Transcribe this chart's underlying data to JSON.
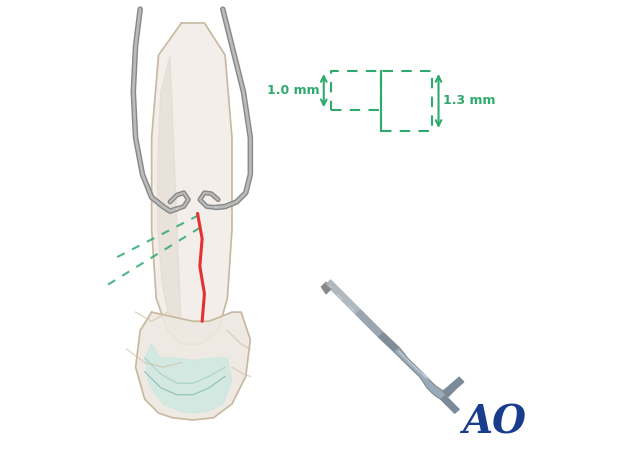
{
  "bg_color": "#ffffff",
  "green_color": "#2eaa6e",
  "red_color": "#e63030",
  "gray_dark": "#888888",
  "gray_mid": "#aaaaaa",
  "gray_light": "#dddddd",
  "gray_very_light": "#f0f0f0",
  "teal_light": "#c8e8e0",
  "ao_blue": "#1a3c8c",
  "bone_color": "#f5f0e8",
  "bone_outline": "#ccbbaa",
  "diagram_1mm_label": "1.0 mm",
  "diagram_13mm_label": "1.3 mm",
  "ao_text": "AO",
  "figsize": [
    6.2,
    4.59
  ],
  "dpi": 100
}
